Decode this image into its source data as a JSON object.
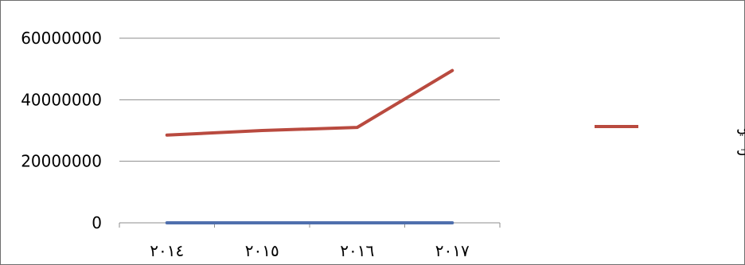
{
  "chart_data": {
    "type": "line",
    "categories": [
      "٢٠١٤",
      "٢٠١٥",
      "٢٠١٦",
      "٢٠١٧"
    ],
    "ylim": [
      0,
      60000000
    ],
    "yticks": [
      0,
      20000000,
      40000000,
      60000000
    ],
    "ytick_labels": [
      "0",
      "20000000",
      "40000000",
      "60000000"
    ],
    "grid": true,
    "legend_position": "right",
    "series": [
      {
        "name": "عدد مستخدمي الانترنت",
        "values": [
          28500000,
          30000000,
          31000000,
          49500000
        ],
        "color": "#b94a3f"
      },
      {
        "values": [
          0,
          0,
          0,
          0
        ],
        "color": "#4f6fad"
      }
    ],
    "legend": {
      "line1": "عدد مستخدمي",
      "line2": "الانترنت"
    },
    "colors": {
      "gridline": "#8c8c8c",
      "axis": "#8c8c8c",
      "frame": "#6e6e6e"
    }
  }
}
